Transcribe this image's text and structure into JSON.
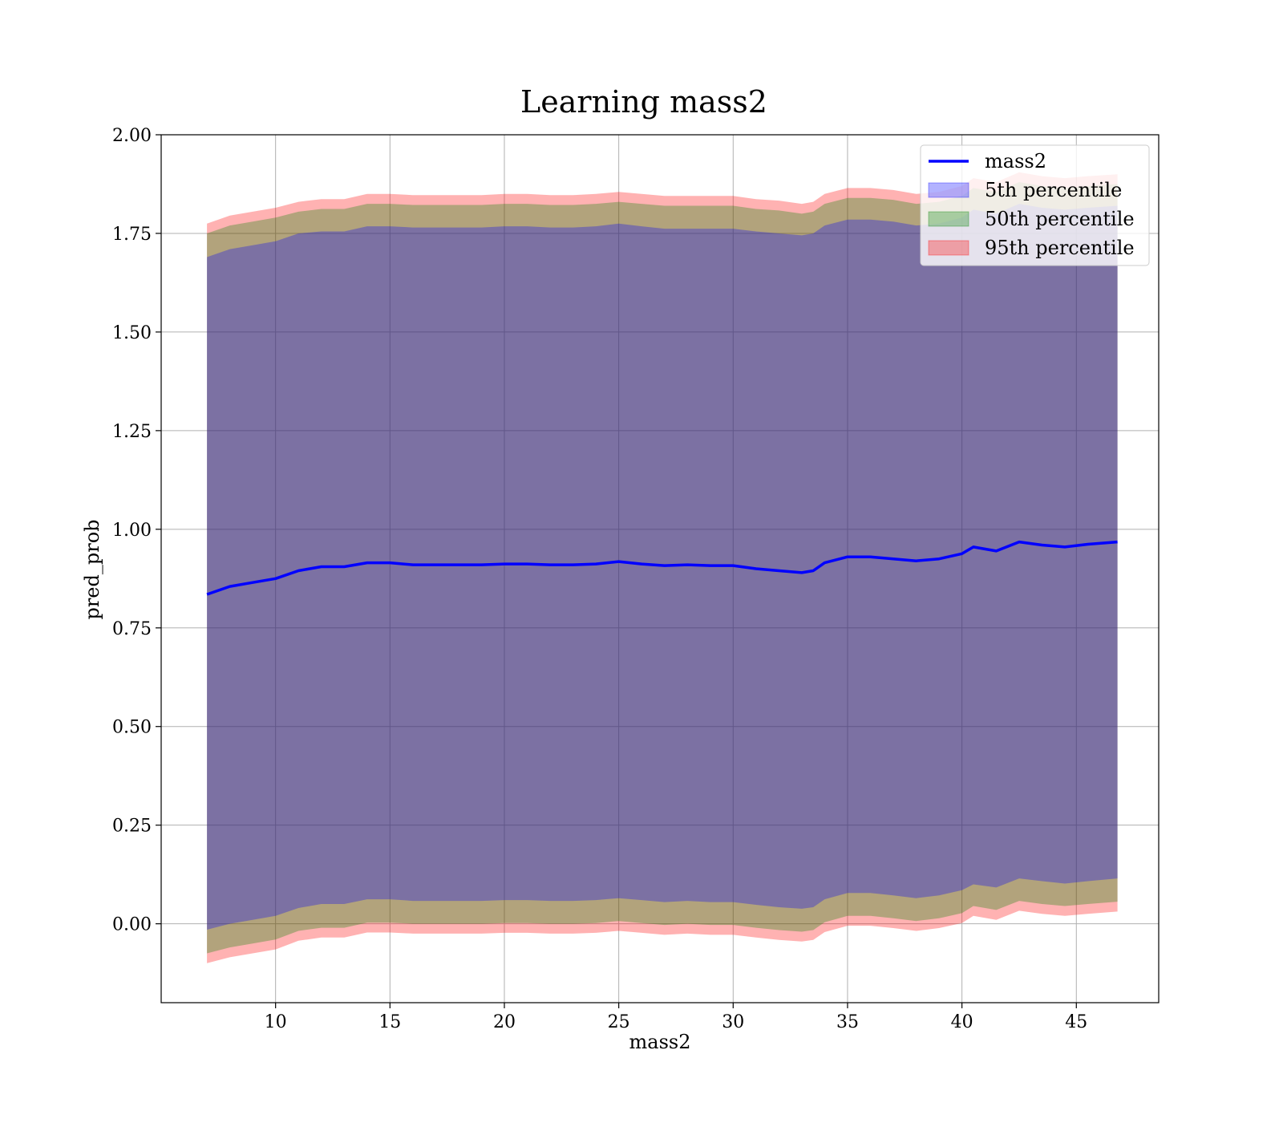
{
  "chart_data": {
    "type": "area",
    "title": "Learning mass2",
    "xlabel": "mass2",
    "ylabel": "pred_prob",
    "xlim": [
      5.0,
      48.6
    ],
    "ylim": [
      -0.2,
      2.0
    ],
    "xticks": [
      10,
      15,
      20,
      25,
      30,
      35,
      40,
      45
    ],
    "xtick_labels": [
      "10",
      "15",
      "20",
      "25",
      "30",
      "35",
      "40",
      "45"
    ],
    "yticks": [
      0.0,
      0.25,
      0.5,
      0.75,
      1.0,
      1.25,
      1.5,
      1.75,
      2.0
    ],
    "ytick_labels": [
      "0.00",
      "0.25",
      "0.50",
      "0.75",
      "1.00",
      "1.25",
      "1.50",
      "1.75",
      "2.00"
    ],
    "grid": true,
    "legend_position": "top-right",
    "x": [
      7.0,
      8.0,
      9.0,
      10.0,
      11.0,
      12.0,
      13.0,
      14.0,
      15.0,
      16.0,
      17.0,
      18.0,
      19.0,
      20.0,
      21.0,
      22.0,
      23.0,
      24.0,
      25.0,
      26.0,
      27.0,
      28.0,
      29.0,
      30.0,
      31.0,
      32.0,
      33.0,
      33.5,
      34.0,
      35.0,
      36.0,
      37.0,
      38.0,
      39.0,
      40.0,
      40.5,
      41.5,
      42.5,
      43.5,
      44.5,
      45.5,
      46.8
    ],
    "series": [
      {
        "name": "mass2",
        "kind": "line",
        "color": "#0000ff",
        "values": [
          0.835,
          0.855,
          0.865,
          0.875,
          0.895,
          0.905,
          0.905,
          0.915,
          0.915,
          0.91,
          0.91,
          0.91,
          0.91,
          0.912,
          0.912,
          0.91,
          0.91,
          0.912,
          0.918,
          0.912,
          0.908,
          0.91,
          0.908,
          0.908,
          0.9,
          0.895,
          0.89,
          0.895,
          0.915,
          0.93,
          0.93,
          0.925,
          0.92,
          0.925,
          0.938,
          0.955,
          0.945,
          0.968,
          0.96,
          0.955,
          0.962,
          0.968
        ]
      },
      {
        "name": "5th percentile",
        "kind": "band",
        "color": "#0000ff",
        "upper": [
          1.69,
          1.71,
          1.72,
          1.73,
          1.75,
          1.755,
          1.755,
          1.768,
          1.768,
          1.765,
          1.765,
          1.765,
          1.765,
          1.768,
          1.768,
          1.765,
          1.765,
          1.768,
          1.775,
          1.768,
          1.762,
          1.762,
          1.762,
          1.762,
          1.755,
          1.75,
          1.745,
          1.75,
          1.77,
          1.785,
          1.785,
          1.78,
          1.77,
          1.775,
          1.79,
          1.81,
          1.8,
          1.825,
          1.815,
          1.81,
          1.815,
          1.82
        ],
        "lower": [
          -0.015,
          0.0,
          0.01,
          0.02,
          0.04,
          0.05,
          0.05,
          0.062,
          0.062,
          0.058,
          0.058,
          0.058,
          0.058,
          0.06,
          0.06,
          0.058,
          0.058,
          0.06,
          0.065,
          0.06,
          0.055,
          0.058,
          0.055,
          0.055,
          0.048,
          0.042,
          0.038,
          0.042,
          0.062,
          0.078,
          0.078,
          0.072,
          0.065,
          0.072,
          0.085,
          0.1,
          0.092,
          0.115,
          0.108,
          0.102,
          0.108,
          0.115
        ]
      },
      {
        "name": "50th percentile",
        "kind": "band",
        "color": "#008000",
        "upper": [
          1.75,
          1.77,
          1.78,
          1.79,
          1.805,
          1.812,
          1.812,
          1.825,
          1.825,
          1.822,
          1.822,
          1.822,
          1.822,
          1.825,
          1.825,
          1.822,
          1.822,
          1.825,
          1.83,
          1.825,
          1.82,
          1.82,
          1.82,
          1.82,
          1.812,
          1.808,
          1.8,
          1.805,
          1.825,
          1.84,
          1.84,
          1.835,
          1.825,
          1.83,
          1.845,
          1.865,
          1.855,
          1.88,
          1.87,
          1.865,
          1.87,
          1.875
        ],
        "lower": [
          -0.075,
          -0.06,
          -0.05,
          -0.04,
          -0.018,
          -0.01,
          -0.01,
          0.003,
          0.003,
          0.0,
          0.0,
          0.0,
          0.0,
          0.002,
          0.002,
          0.0,
          0.0,
          0.002,
          0.007,
          0.002,
          -0.003,
          0.0,
          -0.003,
          -0.003,
          -0.01,
          -0.016,
          -0.02,
          -0.016,
          0.004,
          0.02,
          0.02,
          0.014,
          0.007,
          0.014,
          0.027,
          0.045,
          0.035,
          0.058,
          0.05,
          0.045,
          0.05,
          0.056
        ]
      },
      {
        "name": "95th percentile",
        "kind": "band",
        "color": "#ff0000",
        "upper": [
          1.775,
          1.795,
          1.805,
          1.815,
          1.83,
          1.837,
          1.837,
          1.85,
          1.85,
          1.847,
          1.847,
          1.847,
          1.847,
          1.85,
          1.85,
          1.847,
          1.847,
          1.85,
          1.855,
          1.85,
          1.845,
          1.845,
          1.845,
          1.845,
          1.837,
          1.833,
          1.825,
          1.83,
          1.85,
          1.865,
          1.865,
          1.86,
          1.85,
          1.855,
          1.87,
          1.89,
          1.88,
          1.905,
          1.895,
          1.89,
          1.895,
          1.9
        ],
        "lower": [
          -0.1,
          -0.085,
          -0.075,
          -0.065,
          -0.043,
          -0.035,
          -0.035,
          -0.022,
          -0.022,
          -0.025,
          -0.025,
          -0.025,
          -0.025,
          -0.023,
          -0.023,
          -0.025,
          -0.025,
          -0.023,
          -0.018,
          -0.023,
          -0.028,
          -0.025,
          -0.028,
          -0.028,
          -0.035,
          -0.041,
          -0.045,
          -0.041,
          -0.021,
          -0.005,
          -0.005,
          -0.011,
          -0.018,
          -0.011,
          0.002,
          0.02,
          0.01,
          0.033,
          0.025,
          0.02,
          0.025,
          0.031
        ]
      }
    ]
  }
}
